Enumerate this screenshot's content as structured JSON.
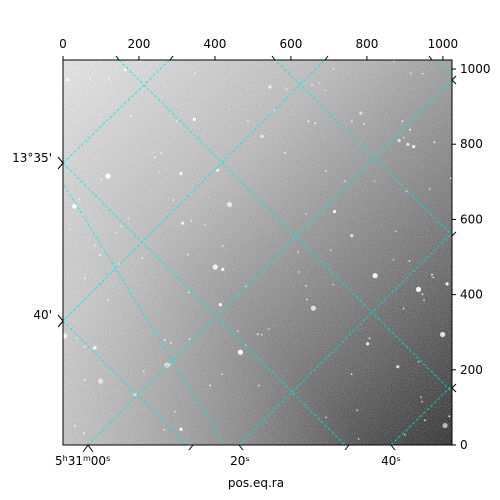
{
  "figure": {
    "xlabel": "pos.eq.ra",
    "top_axis_ticks": [
      "0",
      "200",
      "400",
      "600",
      "800",
      "1000"
    ],
    "right_axis_ticks": [
      "0",
      "200",
      "400",
      "600",
      "800",
      "1000"
    ],
    "bottom_axis_ticks": [
      "20ˢ",
      "40ˢ"
    ],
    "bottom_axis_first": {
      "h": "5",
      "hsup": "h",
      "m": "31",
      "msup": "m",
      "s": "00",
      "ssup": "s"
    },
    "left_axis_ticks": [
      "13°35'",
      "40'"
    ],
    "colors": {
      "grid": "#00e5e5",
      "frame": "#000000",
      "sky_light": "#d8d8d8",
      "sky_dark": "#151515"
    }
  },
  "image": {
    "description": "grayscale astronomical sky image with scattered stars",
    "pixel_range": {
      "x": [
        0,
        1024
      ],
      "y": [
        0,
        1024
      ]
    }
  }
}
